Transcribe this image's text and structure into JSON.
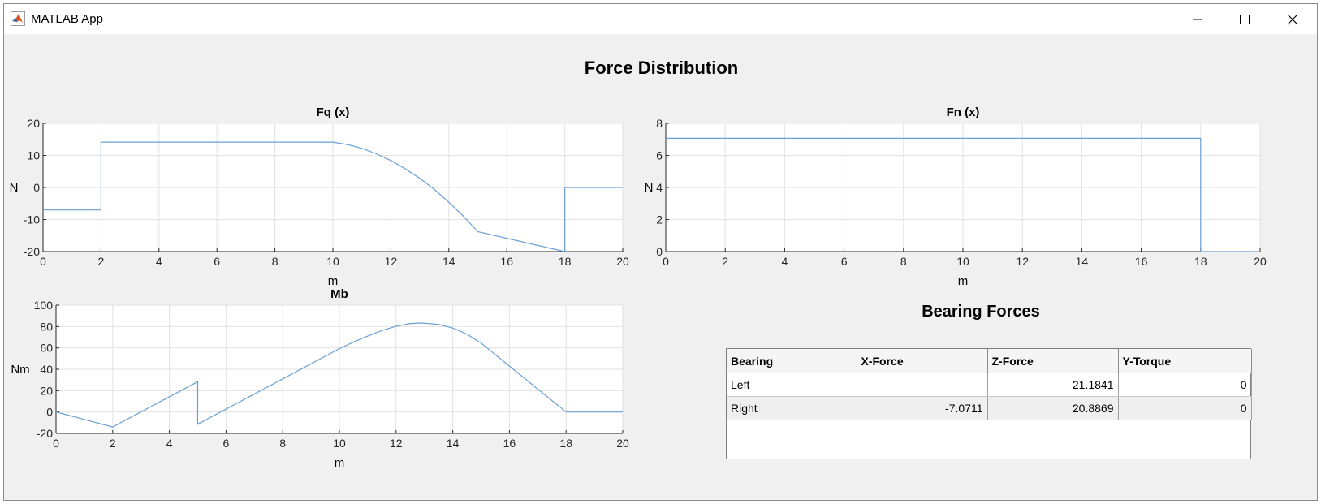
{
  "window": {
    "title": "MATLAB App",
    "controls": [
      "minimize",
      "maximize",
      "close"
    ]
  },
  "page_title": "Force Distribution",
  "chart_data": [
    {
      "type": "line",
      "title": "Fq (x)",
      "xlabel": "m",
      "ylabel": "N",
      "xlim": [
        0,
        20
      ],
      "ylim": [
        -20,
        20
      ],
      "xticks": [
        0,
        2,
        4,
        6,
        8,
        10,
        12,
        14,
        16,
        18,
        20
      ],
      "yticks": [
        -20,
        -10,
        0,
        10,
        20
      ],
      "grid": true,
      "series": [
        {
          "x": [
            0,
            2,
            2,
            10,
            10.5,
            11,
            11.5,
            12,
            12.5,
            13,
            13.5,
            14,
            14.5,
            15,
            18,
            18,
            20
          ],
          "y": [
            -7,
            -7,
            14.14,
            14.14,
            13.4,
            12.2,
            10.5,
            8.4,
            5.8,
            2.8,
            -0.6,
            -4.6,
            -8.9,
            -13.8,
            -20.8,
            0,
            0
          ]
        }
      ]
    },
    {
      "type": "line",
      "title": "Fn (x)",
      "xlabel": "m",
      "ylabel": "N",
      "xlim": [
        0,
        20
      ],
      "ylim": [
        0,
        8
      ],
      "xticks": [
        0,
        2,
        4,
        6,
        8,
        10,
        12,
        14,
        16,
        18,
        20
      ],
      "yticks": [
        0,
        2,
        4,
        6,
        8
      ],
      "grid": true,
      "series": [
        {
          "x": [
            0,
            18,
            18,
            20
          ],
          "y": [
            7.07,
            7.07,
            0,
            0
          ]
        }
      ]
    },
    {
      "type": "line",
      "title": "Mb",
      "xlabel": "m",
      "ylabel": "Nm",
      "xlim": [
        0,
        20
      ],
      "ylim": [
        -20,
        100
      ],
      "xticks": [
        0,
        2,
        4,
        6,
        8,
        10,
        12,
        14,
        16,
        18,
        20
      ],
      "yticks": [
        -20,
        0,
        20,
        40,
        60,
        80,
        100
      ],
      "grid": true,
      "series": [
        {
          "x": [
            0,
            2,
            5,
            5,
            10,
            10.5,
            11,
            11.5,
            12,
            12.5,
            12.9,
            13.5,
            14,
            14.5,
            15,
            16,
            17,
            18,
            20
          ],
          "y": [
            0,
            -14,
            28.4,
            -11.4,
            59.3,
            65.5,
            71.1,
            76.2,
            80.3,
            82.8,
            83.3,
            82.0,
            78.6,
            73.0,
            64.5,
            43,
            21.5,
            0,
            0
          ]
        }
      ]
    }
  ],
  "bearing_forces": {
    "title": "Bearing Forces",
    "columns": [
      "Bearing",
      "X-Force",
      "Z-Force",
      "Y-Torque"
    ],
    "rows": [
      [
        "Left",
        "",
        "21.1841",
        "0"
      ],
      [
        "Right",
        "-7.0711",
        "20.8869",
        "0"
      ]
    ]
  },
  "colors": {
    "line": "#6a9fd4",
    "grid": "#e2e2e2",
    "axis": "#262626",
    "window_bg": "#f0f0f0"
  }
}
